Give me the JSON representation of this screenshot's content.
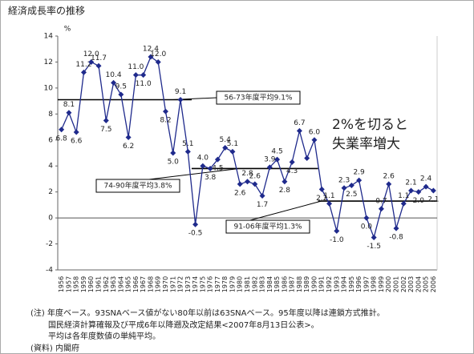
{
  "chart_data": {
    "type": "line",
    "title": "経済成長率の推移",
    "y_unit": "%",
    "categories": [
      "1956",
      "1957",
      "1958",
      "1959",
      "1960",
      "1961",
      "1962",
      "1963",
      "1964",
      "1965",
      "1966",
      "1967",
      "1968",
      "1969",
      "1970",
      "1971",
      "1972",
      "1973",
      "1974",
      "1975",
      "1976",
      "1977",
      "1978",
      "1979",
      "1980",
      "1981",
      "1982",
      "1983",
      "1984",
      "1985",
      "1986",
      "1987",
      "1988",
      "1989",
      "1990",
      "1991",
      "1992",
      "1993",
      "1994",
      "1995",
      "1996",
      "1997",
      "1998",
      "1999",
      "2000",
      "2001",
      "2002",
      "2003",
      "2004",
      "2005",
      "2006"
    ],
    "series": [
      {
        "color": "#1f2a8c",
        "values": [
          6.8,
          8.1,
          6.6,
          11.2,
          12.0,
          11.7,
          7.5,
          10.4,
          9.5,
          6.2,
          11.0,
          11.0,
          12.4,
          12.0,
          8.2,
          5.0,
          9.1,
          5.1,
          -0.5,
          4.0,
          3.8,
          4.5,
          5.4,
          5.1,
          2.6,
          2.8,
          2.6,
          1.7,
          3.9,
          4.5,
          2.8,
          4.3,
          6.7,
          4.6,
          6.0,
          2.2,
          1.1,
          -1.0,
          2.3,
          2.5,
          2.9,
          0.0,
          -1.5,
          0.7,
          2.6,
          -0.8,
          1.1,
          2.1,
          2.0,
          2.4,
          2.1
        ],
        "value_labels": [
          "6.8",
          "8.1",
          "6.6",
          "11.2",
          "12.0",
          "11.7",
          "7.5",
          "10.4",
          "9.5",
          "6.2",
          "11.0",
          "11.0",
          "12.4",
          "12.0",
          "8.2",
          "5.0",
          "9.1",
          "5.1",
          "-0.5",
          "4.0",
          "3.8",
          "4.5",
          "5.4",
          "5.1",
          "2.6",
          "2.8",
          "2.6",
          "1.7",
          "3.9",
          "4.5",
          "2.8",
          "4.3",
          "6.7",
          null,
          "6.0",
          "2.2",
          "1.1",
          "-1.0",
          "2.3",
          "2.5",
          "2.9",
          "0.0",
          "-1.5",
          "0.7",
          "2.6",
          "-0.8",
          "1.1",
          "2.1",
          "2.0",
          "2.4",
          "2.1"
        ]
      }
    ],
    "averages": [
      {
        "label": "56-73年度平均9.1%",
        "value": 9.1,
        "start": "1956",
        "end": "1973"
      },
      {
        "label": "74-90年度平均3.8%",
        "value": 3.8,
        "start": "1974",
        "end": "1990"
      },
      {
        "label": "91-06年度平均1.3%",
        "value": 1.3,
        "start": "1991",
        "end": "2006"
      }
    ],
    "annotation": [
      "2%を切ると",
      "失業率増大"
    ],
    "ylim": [
      -4,
      14
    ],
    "yticks": [
      -4,
      -2,
      0,
      2,
      4,
      6,
      8,
      10,
      12,
      14
    ],
    "notes": [
      "(注) 年度ベース。93SNAベース値がない80年以前は63SNAベース。95年度以降は連鎖方式推計。",
      "国民経済計算確報及び平成6年以降遡及改定結果<2007年8月13日公表>。",
      "平均は各年度数値の単純平均。",
      "(資料) 内閣府"
    ]
  }
}
